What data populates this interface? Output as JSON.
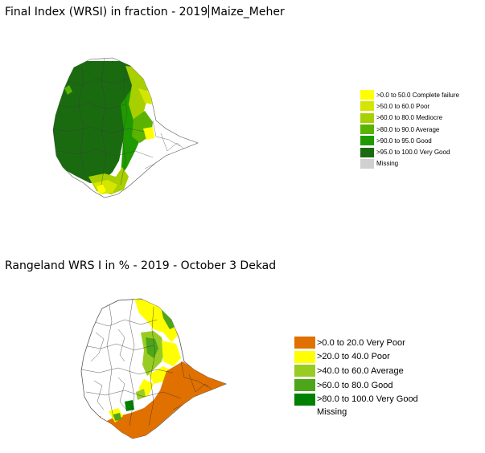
{
  "map1": {
    "title_part1": "Final Index (WRSI) in fraction - 2019",
    "title_part2": "Maize_Meher",
    "legend": [
      {
        "label": ">0.0 to 50.0  Complete failure",
        "color": "#ffff00"
      },
      {
        "label": ">50.0 to 60.0  Poor",
        "color": "#d4e600"
      },
      {
        "label": ">60.0 to 80.0  Mediocre",
        "color": "#a8cf00"
      },
      {
        "label": ">80.0 to 90.0  Average",
        "color": "#59b300"
      },
      {
        "label": ">90.0 to 95.0  Good",
        "color": "#1f9a00"
      },
      {
        "label": ">95.0 to 100.0  Very Good",
        "color": "#1a6b10"
      }
    ],
    "missing_label": "Missing",
    "missing_color": "#d0d0d0"
  },
  "map2": {
    "title": "Rangeland WRS I in % - 2019 - October 3 Dekad",
    "legend": [
      {
        "label": ">0.0 to 20.0  Very Poor",
        "color": "#e07000"
      },
      {
        "label": ">20.0 to 40.0  Poor",
        "color": "#ffff00"
      },
      {
        "label": ">40.0 to 60.0  Average",
        "color": "#99cc22"
      },
      {
        "label": ">60.0 to 80.0  Good",
        "color": "#4da619"
      },
      {
        "label": ">80.0 to 100.0  Very Good",
        "color": "#008000"
      }
    ],
    "missing_label": "Missing"
  }
}
